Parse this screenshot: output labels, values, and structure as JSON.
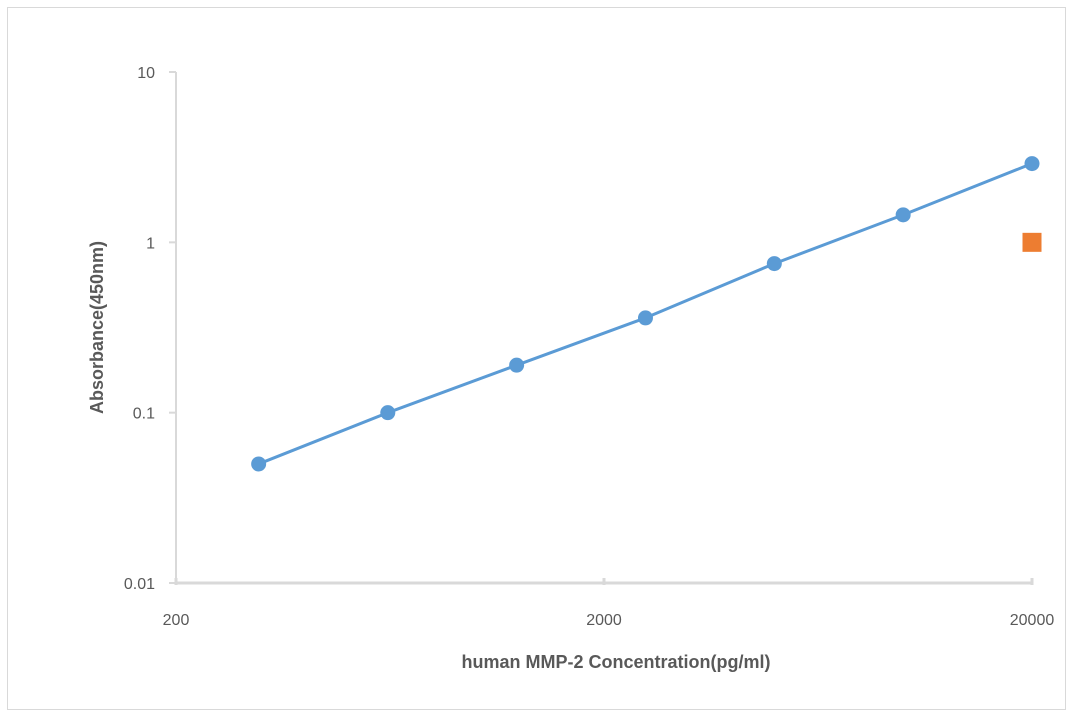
{
  "chart_data": {
    "type": "scatter",
    "title": "",
    "xlabel": "human MMP-2 Concentration(pg/ml)",
    "ylabel": "Absorbance(450nm)",
    "x_scale": "log",
    "y_scale": "log",
    "xlim": [
      200,
      20000
    ],
    "ylim": [
      0.01,
      10
    ],
    "x_ticks": [
      200,
      2000,
      20000
    ],
    "x_tick_labels": [
      "200",
      "2000",
      "20000"
    ],
    "y_ticks": [
      0.01,
      0.1,
      1,
      10
    ],
    "y_tick_labels": [
      "0.01",
      "0.1",
      "1",
      "10"
    ],
    "grid": false,
    "legend": "none",
    "series": [
      {
        "marker": "circle",
        "color": "#5b9bd5",
        "connected": true,
        "x": [
          312,
          625,
          1250,
          2500,
          5000,
          10000,
          20000
        ],
        "y": [
          0.05,
          0.1,
          0.19,
          0.36,
          0.75,
          1.45,
          2.9
        ]
      },
      {
        "marker": "square",
        "color": "#ed7d31",
        "connected": false,
        "x": [
          20000
        ],
        "y": [
          1.0
        ]
      }
    ]
  }
}
